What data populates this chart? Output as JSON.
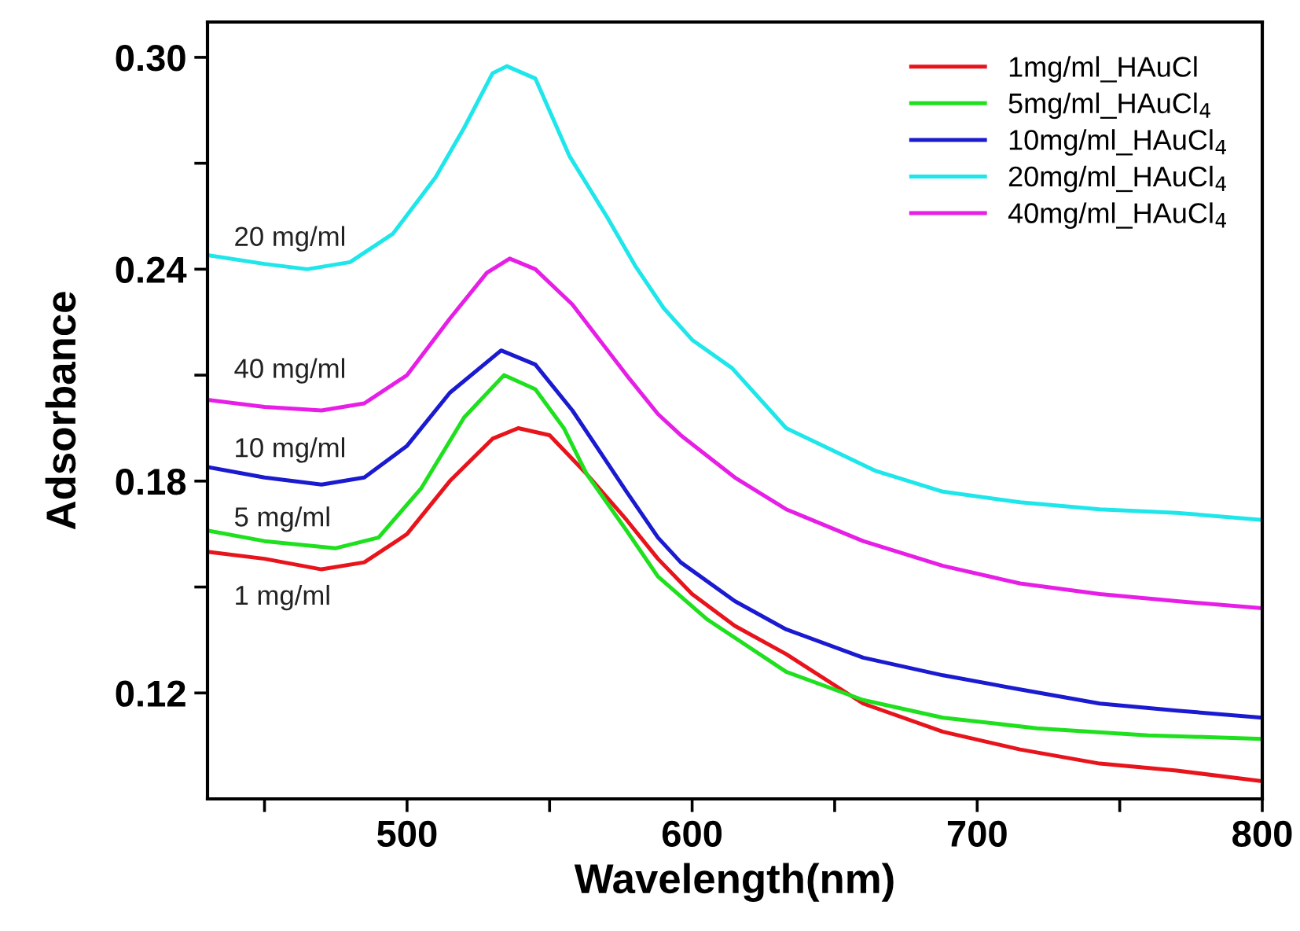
{
  "chart_data": {
    "type": "line",
    "xlabel": "Wavelength(nm)",
    "ylabel": "Adsorbance",
    "xlim": [
      430,
      800
    ],
    "ylim": [
      0.09,
      0.31
    ],
    "xticks": [
      500,
      600,
      700,
      800,
      {
        "value": 450,
        "label": null
      },
      {
        "value": 550,
        "label": null
      },
      {
        "value": 650,
        "label": null
      },
      {
        "value": 750,
        "label": null
      }
    ],
    "yticks": [
      {
        "value": 0.12,
        "label": "0.12"
      },
      {
        "value": 0.18,
        "label": "0.18"
      },
      {
        "value": 0.24,
        "label": "0.24"
      },
      {
        "value": 0.3,
        "label": "0.30"
      },
      {
        "value": 0.15,
        "label": null
      },
      {
        "value": 0.21,
        "label": null
      },
      {
        "value": 0.27,
        "label": null
      }
    ],
    "grid": false,
    "legend": "top right",
    "marker": "none",
    "line_style": "solid",
    "series": [
      {
        "name": "1mg/ml_HAuCl",
        "color": "#e8141c",
        "x": [
          430,
          450,
          470,
          485,
          500,
          515,
          530,
          539,
          550,
          563,
          577,
          588,
          600,
          615,
          633,
          660,
          688,
          715,
          743,
          770,
          800
        ],
        "values": [
          0.16,
          0.158,
          0.155,
          0.157,
          0.165,
          0.18,
          0.192,
          0.195,
          0.193,
          0.182,
          0.169,
          0.158,
          0.148,
          0.139,
          0.131,
          0.117,
          0.109,
          0.104,
          0.1,
          0.098,
          0.095
        ]
      },
      {
        "name": "5mg/ml_HAuCl$_{4}$",
        "color": "#1ee01e",
        "x": [
          430,
          450,
          475,
          490,
          505,
          520,
          534,
          545,
          555,
          563,
          577,
          588,
          605,
          633,
          660,
          688,
          721,
          760,
          800
        ],
        "values": [
          0.166,
          0.163,
          0.161,
          0.164,
          0.178,
          0.198,
          0.21,
          0.206,
          0.195,
          0.182,
          0.166,
          0.153,
          0.141,
          0.126,
          0.118,
          0.113,
          0.11,
          0.108,
          0.107
        ]
      },
      {
        "name": "10mg/ml_HAuCl$_{4}$",
        "color": "#1a1ad0",
        "x": [
          430,
          450,
          470,
          485,
          500,
          515,
          533,
          545,
          558,
          577,
          588,
          596,
          615,
          633,
          660,
          688,
          715,
          743,
          770,
          800
        ],
        "values": [
          0.184,
          0.181,
          0.179,
          0.181,
          0.19,
          0.205,
          0.217,
          0.213,
          0.2,
          0.177,
          0.164,
          0.157,
          0.146,
          0.138,
          0.13,
          0.125,
          0.121,
          0.117,
          0.115,
          0.113
        ]
      },
      {
        "name": "20mg/ml_HAuCl$_{4}$",
        "color": "#1ee6ea",
        "x": [
          430,
          450,
          465,
          480,
          495,
          510,
          520,
          530,
          535,
          545,
          557,
          570,
          580,
          590,
          600,
          614,
          633,
          664,
          688,
          715,
          743,
          770,
          800
        ],
        "values": [
          0.244,
          0.2415,
          0.24,
          0.242,
          0.25,
          0.266,
          0.28,
          0.2955,
          0.2975,
          0.294,
          0.272,
          0.255,
          0.241,
          0.229,
          0.22,
          0.212,
          0.195,
          0.183,
          0.177,
          0.174,
          0.172,
          0.171,
          0.169
        ]
      },
      {
        "name": "40mg/ml_HAuCl$_{4}$",
        "color": "#e61ee6",
        "x": [
          430,
          450,
          470,
          485,
          500,
          515,
          528,
          536,
          545,
          558,
          577,
          588,
          596,
          615,
          633,
          660,
          688,
          715,
          743,
          770,
          800
        ],
        "values": [
          0.203,
          0.201,
          0.2,
          0.202,
          0.21,
          0.226,
          0.239,
          0.243,
          0.24,
          0.23,
          0.21,
          0.199,
          0.193,
          0.181,
          0.172,
          0.163,
          0.156,
          0.151,
          0.148,
          0.146,
          0.144
        ]
      }
    ],
    "annotations": [
      "20 mg/ml",
      "40 mg/ml",
      "10 mg/ml",
      "5 mg/ml",
      "1 mg/ml"
    ]
  }
}
